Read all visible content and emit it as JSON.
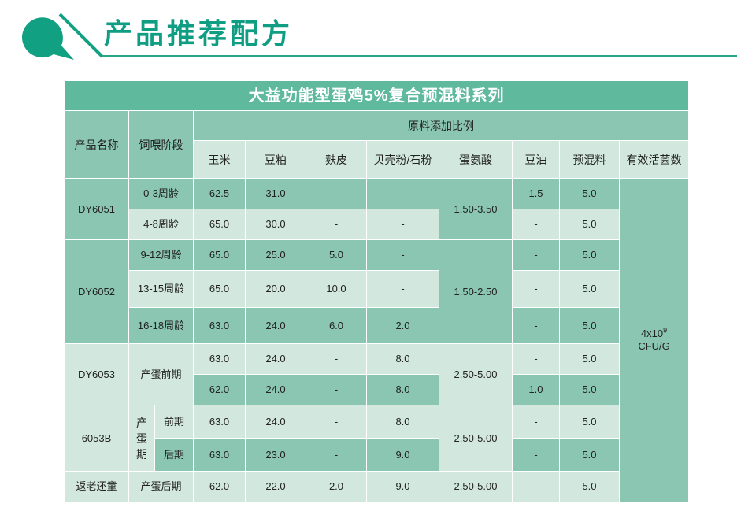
{
  "page": {
    "title": "产品推荐配方"
  },
  "table": {
    "title": "大益功能型蛋鸡5%复合预混料系列",
    "headers": {
      "product_name": "产品名称",
      "feeding_stage": "饲喂阶段",
      "ratio": "原料添加比例",
      "columns": [
        "玉米",
        "豆粕",
        "麸皮",
        "贝壳粉/石粉",
        "蛋氨酸",
        "豆油",
        "预混料",
        "有效活菌数"
      ]
    },
    "products": {
      "dy6051": "DY6051",
      "dy6052": "DY6052",
      "dy6053": "DY6053",
      "p6053b": "6053B",
      "fanlao": "返老还童"
    },
    "stages": {
      "s1": "0-3周龄",
      "s2": "4-8周龄",
      "s3": "9-12周龄",
      "s4": "13-15周龄",
      "s5": "16-18周龄",
      "s6": "产蛋前期",
      "s7_group": "产蛋期",
      "s7a": "前期",
      "s7b": "后期",
      "s8": "产蛋后期"
    },
    "rows": [
      {
        "corn": "62.5",
        "soy": "31.0",
        "bran": "-",
        "shell": "-",
        "oil": "1.5",
        "premix": "5.0"
      },
      {
        "corn": "65.0",
        "soy": "30.0",
        "bran": "-",
        "shell": "-",
        "oil": "-",
        "premix": "5.0"
      },
      {
        "corn": "65.0",
        "soy": "25.0",
        "bran": "5.0",
        "shell": "-",
        "oil": "-",
        "premix": "5.0"
      },
      {
        "corn": "65.0",
        "soy": "20.0",
        "bran": "10.0",
        "shell": "-",
        "oil": "-",
        "premix": "5.0"
      },
      {
        "corn": "63.0",
        "soy": "24.0",
        "bran": "6.0",
        "shell": "2.0",
        "oil": "-",
        "premix": "5.0"
      },
      {
        "corn": "63.0",
        "soy": "24.0",
        "bran": "-",
        "shell": "8.0",
        "oil": "-",
        "premix": "5.0"
      },
      {
        "corn": "62.0",
        "soy": "24.0",
        "bran": "-",
        "shell": "8.0",
        "oil": "1.0",
        "premix": "5.0"
      },
      {
        "corn": "63.0",
        "soy": "24.0",
        "bran": "-",
        "shell": "8.0",
        "oil": "-",
        "premix": "5.0"
      },
      {
        "corn": "63.0",
        "soy": "23.0",
        "bran": "-",
        "shell": "9.0",
        "oil": "-",
        "premix": "5.0"
      },
      {
        "corn": "62.0",
        "soy": "22.0",
        "bran": "2.0",
        "shell": "9.0",
        "oil": "-",
        "premix": "5.0"
      }
    ],
    "methionine": {
      "g1": "1.50-3.50",
      "g2": "1.50-2.50",
      "g3": "2.50-5.00",
      "g4": "2.50-5.00",
      "g5": "2.50-5.00"
    },
    "bacteria": {
      "base": "4x10",
      "exp": "9",
      "unit": "CFU/G"
    }
  },
  "colors": {
    "accent": "#0f9d83",
    "title_bar": "#5fb99d",
    "dark_cell": "#8bc6b3",
    "light_cell": "#d2e8de"
  }
}
